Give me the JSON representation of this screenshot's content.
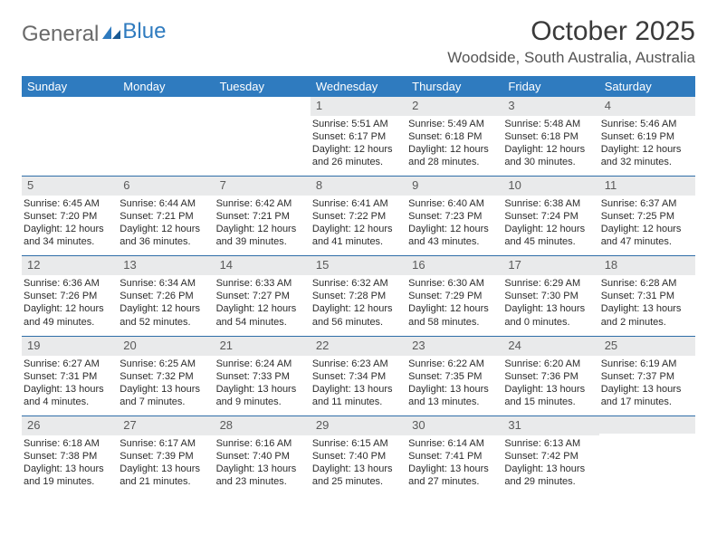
{
  "logo": {
    "text1": "General",
    "text2": "Blue"
  },
  "title": "October 2025",
  "location": "Woodside, South Australia, Australia",
  "colors": {
    "header_bg": "#2f7bbf",
    "header_text": "#ffffff",
    "daynum_bg": "#e9eaeb",
    "week_border": "#2f6ea8",
    "body_text": "#2b2b2b"
  },
  "dow": [
    "Sunday",
    "Monday",
    "Tuesday",
    "Wednesday",
    "Thursday",
    "Friday",
    "Saturday"
  ],
  "weeks": [
    [
      null,
      null,
      null,
      {
        "n": "1",
        "sr": "5:51 AM",
        "ss": "6:17 PM",
        "d1": "12 hours",
        "d2": "and 26 minutes."
      },
      {
        "n": "2",
        "sr": "5:49 AM",
        "ss": "6:18 PM",
        "d1": "12 hours",
        "d2": "and 28 minutes."
      },
      {
        "n": "3",
        "sr": "5:48 AM",
        "ss": "6:18 PM",
        "d1": "12 hours",
        "d2": "and 30 minutes."
      },
      {
        "n": "4",
        "sr": "5:46 AM",
        "ss": "6:19 PM",
        "d1": "12 hours",
        "d2": "and 32 minutes."
      }
    ],
    [
      {
        "n": "5",
        "sr": "6:45 AM",
        "ss": "7:20 PM",
        "d1": "12 hours",
        "d2": "and 34 minutes."
      },
      {
        "n": "6",
        "sr": "6:44 AM",
        "ss": "7:21 PM",
        "d1": "12 hours",
        "d2": "and 36 minutes."
      },
      {
        "n": "7",
        "sr": "6:42 AM",
        "ss": "7:21 PM",
        "d1": "12 hours",
        "d2": "and 39 minutes."
      },
      {
        "n": "8",
        "sr": "6:41 AM",
        "ss": "7:22 PM",
        "d1": "12 hours",
        "d2": "and 41 minutes."
      },
      {
        "n": "9",
        "sr": "6:40 AM",
        "ss": "7:23 PM",
        "d1": "12 hours",
        "d2": "and 43 minutes."
      },
      {
        "n": "10",
        "sr": "6:38 AM",
        "ss": "7:24 PM",
        "d1": "12 hours",
        "d2": "and 45 minutes."
      },
      {
        "n": "11",
        "sr": "6:37 AM",
        "ss": "7:25 PM",
        "d1": "12 hours",
        "d2": "and 47 minutes."
      }
    ],
    [
      {
        "n": "12",
        "sr": "6:36 AM",
        "ss": "7:26 PM",
        "d1": "12 hours",
        "d2": "and 49 minutes."
      },
      {
        "n": "13",
        "sr": "6:34 AM",
        "ss": "7:26 PM",
        "d1": "12 hours",
        "d2": "and 52 minutes."
      },
      {
        "n": "14",
        "sr": "6:33 AM",
        "ss": "7:27 PM",
        "d1": "12 hours",
        "d2": "and 54 minutes."
      },
      {
        "n": "15",
        "sr": "6:32 AM",
        "ss": "7:28 PM",
        "d1": "12 hours",
        "d2": "and 56 minutes."
      },
      {
        "n": "16",
        "sr": "6:30 AM",
        "ss": "7:29 PM",
        "d1": "12 hours",
        "d2": "and 58 minutes."
      },
      {
        "n": "17",
        "sr": "6:29 AM",
        "ss": "7:30 PM",
        "d1": "13 hours",
        "d2": "and 0 minutes."
      },
      {
        "n": "18",
        "sr": "6:28 AM",
        "ss": "7:31 PM",
        "d1": "13 hours",
        "d2": "and 2 minutes."
      }
    ],
    [
      {
        "n": "19",
        "sr": "6:27 AM",
        "ss": "7:31 PM",
        "d1": "13 hours",
        "d2": "and 4 minutes."
      },
      {
        "n": "20",
        "sr": "6:25 AM",
        "ss": "7:32 PM",
        "d1": "13 hours",
        "d2": "and 7 minutes."
      },
      {
        "n": "21",
        "sr": "6:24 AM",
        "ss": "7:33 PM",
        "d1": "13 hours",
        "d2": "and 9 minutes."
      },
      {
        "n": "22",
        "sr": "6:23 AM",
        "ss": "7:34 PM",
        "d1": "13 hours",
        "d2": "and 11 minutes."
      },
      {
        "n": "23",
        "sr": "6:22 AM",
        "ss": "7:35 PM",
        "d1": "13 hours",
        "d2": "and 13 minutes."
      },
      {
        "n": "24",
        "sr": "6:20 AM",
        "ss": "7:36 PM",
        "d1": "13 hours",
        "d2": "and 15 minutes."
      },
      {
        "n": "25",
        "sr": "6:19 AM",
        "ss": "7:37 PM",
        "d1": "13 hours",
        "d2": "and 17 minutes."
      }
    ],
    [
      {
        "n": "26",
        "sr": "6:18 AM",
        "ss": "7:38 PM",
        "d1": "13 hours",
        "d2": "and 19 minutes."
      },
      {
        "n": "27",
        "sr": "6:17 AM",
        "ss": "7:39 PM",
        "d1": "13 hours",
        "d2": "and 21 minutes."
      },
      {
        "n": "28",
        "sr": "6:16 AM",
        "ss": "7:40 PM",
        "d1": "13 hours",
        "d2": "and 23 minutes."
      },
      {
        "n": "29",
        "sr": "6:15 AM",
        "ss": "7:40 PM",
        "d1": "13 hours",
        "d2": "and 25 minutes."
      },
      {
        "n": "30",
        "sr": "6:14 AM",
        "ss": "7:41 PM",
        "d1": "13 hours",
        "d2": "and 27 minutes."
      },
      {
        "n": "31",
        "sr": "6:13 AM",
        "ss": "7:42 PM",
        "d1": "13 hours",
        "d2": "and 29 minutes."
      },
      null
    ]
  ],
  "labels": {
    "sunrise": "Sunrise: ",
    "sunset": "Sunset: ",
    "daylight": "Daylight: "
  }
}
